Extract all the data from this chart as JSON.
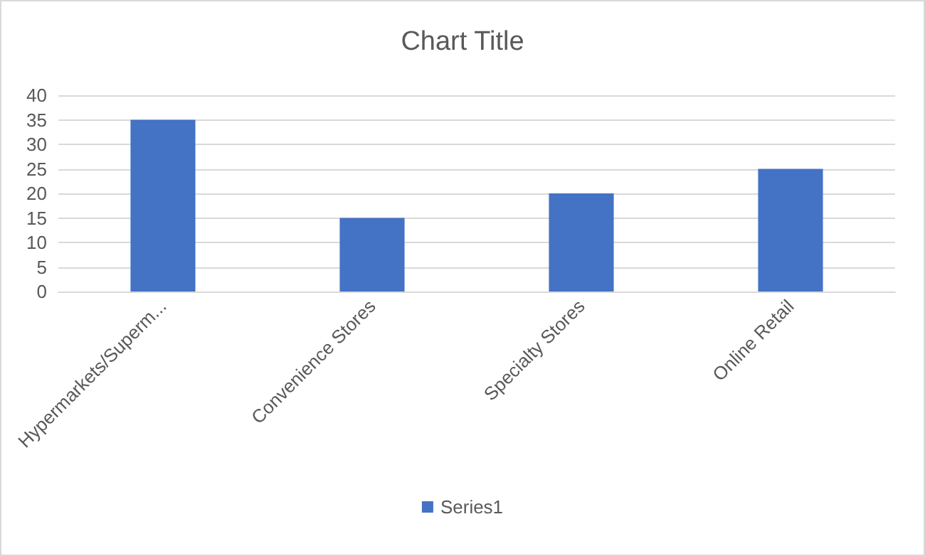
{
  "chart_data": {
    "type": "bar",
    "title": "Chart Title",
    "categories": [
      "Hypermarkets/Superm...",
      "Convenience Stores",
      "Specialty Stores",
      "Online Retail"
    ],
    "series": [
      {
        "name": "Series1",
        "color": "#4472c4",
        "values": [
          35,
          15,
          20,
          25
        ]
      }
    ],
    "ylim": [
      0,
      40
    ],
    "yticks": [
      0,
      5,
      10,
      15,
      20,
      25,
      30,
      35,
      40
    ],
    "grid": "y",
    "legend": "bottom"
  }
}
